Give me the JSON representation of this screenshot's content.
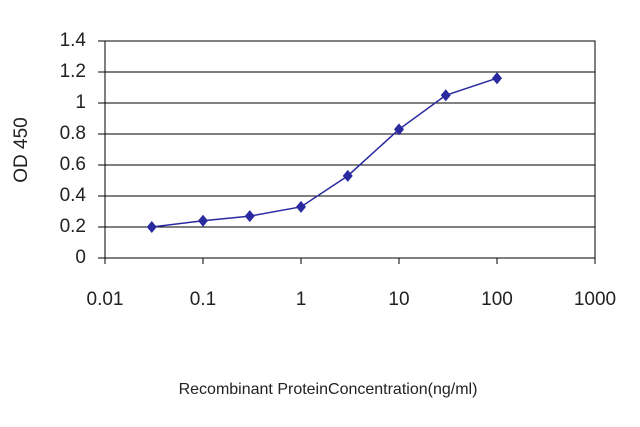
{
  "chart_data": {
    "type": "line",
    "x_label": "Recombinant ProteinConcentration(ng/ml)",
    "y_label": "OD 450",
    "x": [
      0.03,
      0.1,
      0.3,
      1,
      3,
      10,
      30,
      100
    ],
    "series": [
      {
        "color": "#2a2aa0",
        "values": [
          0.2,
          0.24,
          0.27,
          0.33,
          0.53,
          0.83,
          1.05,
          1.16
        ]
      }
    ],
    "xlim": [
      0.01,
      1000
    ],
    "xticks": [
      0.01,
      0.1,
      1,
      10,
      100,
      1000
    ],
    "x_log": true,
    "ylim": [
      0,
      1.4
    ],
    "yticks": [
      0,
      0.2,
      0.4,
      0.6,
      0.8,
      1,
      1.2,
      1.4
    ],
    "grid": true
  }
}
